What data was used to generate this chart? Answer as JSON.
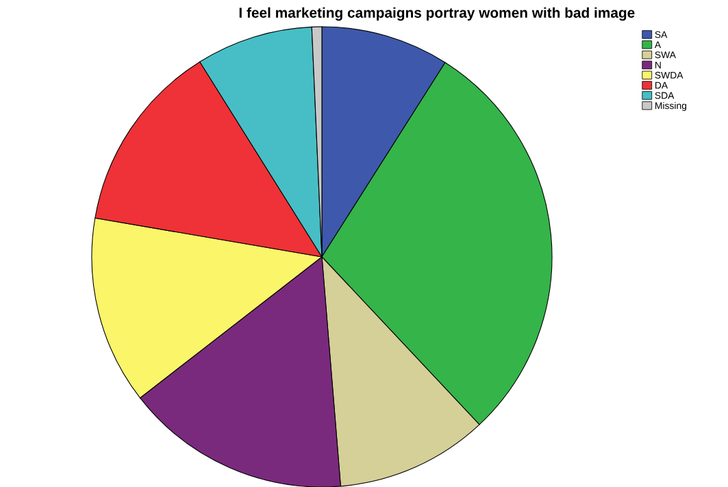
{
  "chart_data": {
    "type": "pie",
    "title": "I feel marketing campaigns portray women with bad image",
    "categories": [
      "SA",
      "A",
      "SWA",
      "N",
      "SWDA",
      "DA",
      "SDA",
      "Missing"
    ],
    "values": [
      9.0,
      29.0,
      10.7,
      15.8,
      13.2,
      13.4,
      8.2,
      0.7
    ],
    "colors": [
      "#3e58ac",
      "#35b44a",
      "#d5cf98",
      "#7a2a7d",
      "#fbf56a",
      "#ee3237",
      "#47bec5",
      "#c8c8c8"
    ],
    "legend": "top right"
  }
}
